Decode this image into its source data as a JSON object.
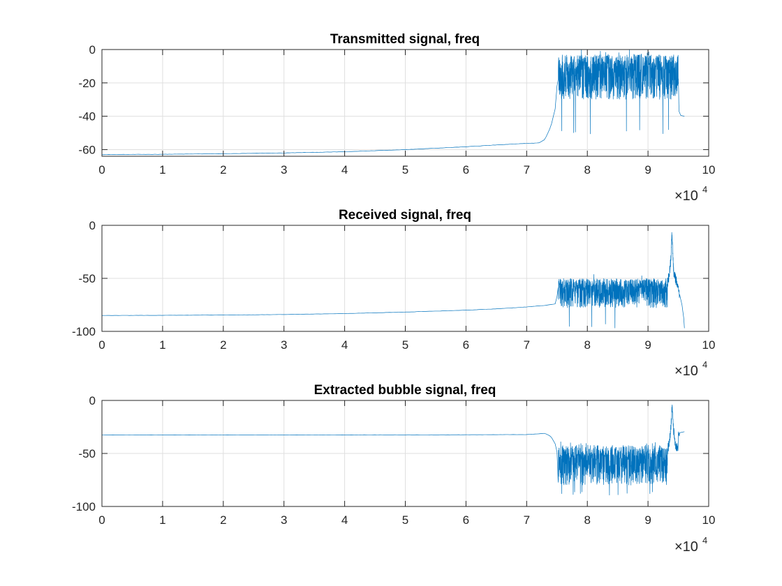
{
  "chart_data": [
    {
      "type": "line",
      "title": "Transmitted signal, freq",
      "xlabel": "",
      "ylabel": "",
      "xlim": [
        0,
        100000
      ],
      "ylim": [
        -64,
        0
      ],
      "xticks": [
        0,
        10000,
        20000,
        30000,
        40000,
        50000,
        60000,
        70000,
        80000,
        90000,
        100000
      ],
      "xtick_labels": [
        "0",
        "1",
        "2",
        "3",
        "4",
        "5",
        "6",
        "7",
        "8",
        "9",
        "10"
      ],
      "yticks": [
        0,
        -20,
        -40,
        -60
      ],
      "ytick_labels": [
        "0",
        "-20",
        "-40",
        "-60"
      ],
      "x_exponent": {
        "base": "×10",
        "power": "4"
      },
      "grid": true,
      "color": "#0072BD",
      "profile": {
        "x": [
          0,
          10000,
          20000,
          30000,
          40000,
          50000,
          60000,
          65000,
          70000,
          72000,
          73000,
          74000,
          74800,
          75200
        ],
        "y": [
          -63,
          -62.8,
          -62.5,
          -62,
          -61.3,
          -60,
          -58.3,
          -57.2,
          -56.3,
          -56,
          -54,
          -46,
          -34,
          -10
        ]
      },
      "noise_band": {
        "x_start": 75200,
        "x_end": 95000,
        "upper": -3,
        "lower": -30,
        "min_spike": -52
      },
      "tail": {
        "x": [
          95000,
          95100,
          95400,
          96000
        ],
        "y": [
          -15,
          -37,
          -39.5,
          -40
        ]
      }
    },
    {
      "type": "line",
      "title": "Received signal, freq",
      "xlabel": "",
      "ylabel": "",
      "xlim": [
        0,
        100000
      ],
      "ylim": [
        -100,
        0
      ],
      "xticks": [
        0,
        10000,
        20000,
        30000,
        40000,
        50000,
        60000,
        70000,
        80000,
        90000,
        100000
      ],
      "xtick_labels": [
        "0",
        "1",
        "2",
        "3",
        "4",
        "5",
        "6",
        "7",
        "8",
        "9",
        "10"
      ],
      "yticks": [
        0,
        -50,
        -100
      ],
      "ytick_labels": [
        "0",
        "-50",
        "-100"
      ],
      "x_exponent": {
        "base": "×10",
        "power": "4"
      },
      "grid": true,
      "color": "#0072BD",
      "profile": {
        "x": [
          0,
          10000,
          20000,
          30000,
          40000,
          50000,
          60000,
          65000,
          70000,
          73000,
          74800,
          75200
        ],
        "y": [
          -85,
          -84.9,
          -84.6,
          -84.1,
          -83.2,
          -81.8,
          -80,
          -78.8,
          -77,
          -75.5,
          -74,
          -60
        ]
      },
      "noise_band": {
        "x_start": 75200,
        "x_end": 93200,
        "upper": -50,
        "lower": -78,
        "min_spike": -97
      },
      "peak": {
        "x": [
          93200,
          93500,
          93800,
          93950,
          94050,
          94200,
          94500,
          94800
        ],
        "y": [
          -50,
          -42,
          -25,
          0,
          -18,
          -38,
          -45,
          -50
        ]
      },
      "tail": {
        "x": [
          94800,
          95200,
          95600,
          95900,
          96000
        ],
        "y": [
          -55,
          -65,
          -75,
          -88,
          -97
        ]
      }
    },
    {
      "type": "line",
      "title": "Extracted bubble signal, freq",
      "xlabel": "",
      "ylabel": "",
      "xlim": [
        0,
        100000
      ],
      "ylim": [
        -100,
        0
      ],
      "xticks": [
        0,
        10000,
        20000,
        30000,
        40000,
        50000,
        60000,
        70000,
        80000,
        90000,
        100000
      ],
      "xtick_labels": [
        "0",
        "1",
        "2",
        "3",
        "4",
        "5",
        "6",
        "7",
        "8",
        "9",
        "10"
      ],
      "yticks": [
        0,
        -50,
        -100
      ],
      "ytick_labels": [
        "0",
        "-50",
        "-100"
      ],
      "x_exponent": {
        "base": "×10",
        "power": "4"
      },
      "grid": true,
      "color": "#0072BD",
      "profile": {
        "x": [
          0,
          20000,
          40000,
          60000,
          70000,
          72000,
          73000,
          74000,
          74800,
          75200
        ],
        "y": [
          -32.5,
          -32.5,
          -32.5,
          -32.4,
          -32.2,
          -31.5,
          -31,
          -34,
          -42,
          -55
        ]
      },
      "noise_band": {
        "x_start": 75200,
        "x_end": 93200,
        "upper": -42,
        "lower": -80,
        "min_spike": -90
      },
      "peak": {
        "x": [
          93200,
          93500,
          93800,
          93950,
          94100,
          94300,
          94600,
          95000
        ],
        "y": [
          -42,
          -35,
          -18,
          0,
          -15,
          -28,
          -38,
          -40
        ]
      },
      "tail": {
        "x": [
          95000,
          95200,
          95600,
          96000
        ],
        "y": [
          -32,
          -30.5,
          -30,
          -29.5
        ]
      }
    }
  ]
}
